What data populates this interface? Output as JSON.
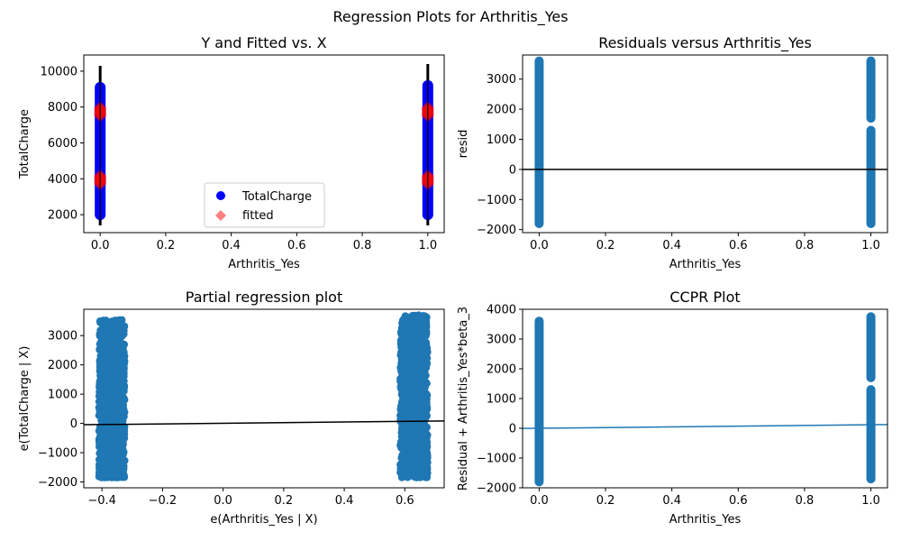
{
  "figure": {
    "suptitle": "Regression Plots for Arthritis_Yes"
  },
  "colors": {
    "blue": "#0000ff",
    "red": "#ff0000",
    "steel_blue": "#1f77b4",
    "black": "#000000"
  },
  "chart_data": [
    {
      "id": "y_fitted",
      "type": "scatter",
      "title": "Y and Fitted vs. X",
      "xlabel": "Arthritis_Yes",
      "ylabel": "TotalCharge",
      "xlim": [
        -0.05,
        1.05
      ],
      "ylim": [
        1000,
        10900
      ],
      "xticks": [
        0.0,
        0.2,
        0.4,
        0.6,
        0.8,
        1.0
      ],
      "xtick_labels": [
        "0.0",
        "0.2",
        "0.4",
        "0.6",
        "0.8",
        "1.0"
      ],
      "yticks": [
        2000,
        4000,
        6000,
        8000,
        10000
      ],
      "ytick_labels": [
        "2000",
        "4000",
        "6000",
        "8000",
        "10000"
      ],
      "legend": {
        "position": "lower center",
        "entries": [
          {
            "label": "TotalCharge",
            "marker": "circle",
            "color": "#0000ff"
          },
          {
            "label": "fitted",
            "marker": "diamond",
            "color": "#ff0000",
            "alpha": 0.5
          }
        ]
      },
      "vlines": [
        {
          "x": 0,
          "y0": 1400,
          "y1": 10300
        },
        {
          "x": 1,
          "y0": 1400,
          "y1": 10400
        }
      ],
      "series": [
        {
          "name": "TotalCharge",
          "color": "#0000ff",
          "x": [
            0,
            1
          ],
          "y_min": [
            2000,
            2000
          ],
          "y_max": [
            9100,
            9200
          ]
        },
        {
          "name": "fitted",
          "color": "#ff0000",
          "x": [
            0,
            1
          ],
          "fitted_groups": [
            [
              3700,
              4200
            ],
            [
              7500,
              8000
            ]
          ]
        }
      ]
    },
    {
      "id": "resid",
      "type": "scatter",
      "title": "Residuals versus Arthritis_Yes",
      "xlabel": "Arthritis_Yes",
      "ylabel": "resid",
      "xlim": [
        -0.05,
        1.05
      ],
      "ylim": [
        -2100,
        3800
      ],
      "xticks": [
        0.0,
        0.2,
        0.4,
        0.6,
        0.8,
        1.0
      ],
      "xtick_labels": [
        "0.0",
        "0.2",
        "0.4",
        "0.6",
        "0.8",
        "1.0"
      ],
      "yticks": [
        -2000,
        -1000,
        0,
        1000,
        2000,
        3000
      ],
      "ytick_labels": [
        "−2000",
        "−1000",
        "0",
        "1000",
        "2000",
        "3000"
      ],
      "hline": 0,
      "series": [
        {
          "x": 0,
          "y_min": -1800,
          "y_max": 3600,
          "gaps": []
        },
        {
          "x": 1,
          "y_min": -1800,
          "y_max": 3600,
          "gaps": [
            [
              1300,
              1700
            ]
          ]
        }
      ]
    },
    {
      "id": "partial",
      "type": "scatter",
      "title": "Partial regression plot",
      "xlabel": "e(Arthritis_Yes | X)",
      "ylabel": "e(TotalCharge | X)",
      "xlim": [
        -0.46,
        0.73
      ],
      "ylim": [
        -2200,
        3900
      ],
      "xticks": [
        -0.4,
        -0.2,
        0.0,
        0.2,
        0.4,
        0.6
      ],
      "xtick_labels": [
        "−0.4",
        "−0.2",
        "0.0",
        "0.2",
        "0.4",
        "0.6"
      ],
      "yticks": [
        -2000,
        -1000,
        0,
        1000,
        2000,
        3000
      ],
      "ytick_labels": [
        "−2000",
        "−1000",
        "0",
        "1000",
        "2000",
        "3000"
      ],
      "fit_line": {
        "x": [
          -0.46,
          0.73
        ],
        "y": [
          -45,
          85
        ]
      },
      "clusters": [
        {
          "x_min": -0.41,
          "x_max": -0.325,
          "y_min": -1850,
          "y_max": 3550
        },
        {
          "x_min": 0.585,
          "x_max": 0.675,
          "y_min": -1850,
          "y_max": 3700
        }
      ]
    },
    {
      "id": "ccpr",
      "type": "scatter",
      "title": "CCPR Plot",
      "xlabel": "Arthritis_Yes",
      "ylabel": "Residual + Arthritis_Yes*beta_3",
      "xlim": [
        -0.05,
        1.05
      ],
      "ylim": [
        -2000,
        4000
      ],
      "xticks": [
        0.0,
        0.2,
        0.4,
        0.6,
        0.8,
        1.0
      ],
      "xtick_labels": [
        "0.0",
        "0.2",
        "0.4",
        "0.6",
        "0.8",
        "1.0"
      ],
      "yticks": [
        -2000,
        -1000,
        0,
        1000,
        2000,
        3000,
        4000
      ],
      "ytick_labels": [
        "−2000",
        "−1000",
        "0",
        "1000",
        "2000",
        "3000",
        "4000"
      ],
      "fit_line": {
        "x": [
          -0.05,
          1.05
        ],
        "y": [
          -5,
          125
        ]
      },
      "series": [
        {
          "x": 0,
          "y_min": -1800,
          "y_max": 3600,
          "gaps": []
        },
        {
          "x": 1,
          "y_min": -1700,
          "y_max": 3750,
          "gaps": [
            [
              1300,
              1700
            ]
          ]
        }
      ]
    }
  ]
}
